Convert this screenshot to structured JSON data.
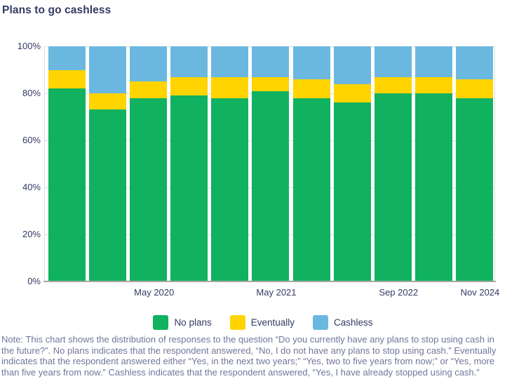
{
  "title": "Plans to go cashless",
  "colors": {
    "title_text": "#333A64",
    "axis_text": "#333A64",
    "note_text": "#70769A",
    "gridline": "#DDDDDD",
    "axis_line": "#A6A6A6",
    "background": "#FFFFFF",
    "no_plans": "#10B15F",
    "eventually": "#FFD400",
    "cashless": "#6AB8DF"
  },
  "chart_data": {
    "type": "bar",
    "stacked": true,
    "title": "Plans to go cashless",
    "xlabel": "",
    "ylabel": "",
    "ylim": [
      0,
      100
    ],
    "grid": "horizontal",
    "legend_position": "bottom",
    "yticks": [
      {
        "value": 0,
        "label": "0%"
      },
      {
        "value": 20,
        "label": "20%"
      },
      {
        "value": 40,
        "label": "40%"
      },
      {
        "value": 60,
        "label": "60%"
      },
      {
        "value": 80,
        "label": "80%"
      },
      {
        "value": 100,
        "label": "100%"
      }
    ],
    "categories": [
      "",
      "",
      "May 2020",
      "",
      "",
      "May 2021",
      "",
      "",
      "Sep 2022",
      "",
      "Nov 2024"
    ],
    "series": [
      {
        "name": "No plans",
        "color": "#10B15F",
        "values": [
          82,
          73,
          78,
          79,
          78,
          81,
          78,
          76,
          80,
          80,
          78
        ]
      },
      {
        "name": "Eventually",
        "color": "#FFD400",
        "values": [
          8,
          7,
          7,
          8,
          9,
          6,
          8,
          8,
          7,
          7,
          8
        ]
      },
      {
        "name": "Cashless",
        "color": "#6AB8DF",
        "values": [
          10,
          20,
          15,
          13,
          13,
          13,
          14,
          16,
          13,
          13,
          14
        ]
      }
    ]
  },
  "legend": {
    "items": [
      {
        "label": "No plans",
        "color": "#10B15F"
      },
      {
        "label": "Eventually",
        "color": "#FFD400"
      },
      {
        "label": "Cashless",
        "color": "#6AB8DF"
      }
    ]
  },
  "note": {
    "lines": [
      "Note: This chart shows the distribution of responses to the question “Do you currently have any plans to stop using cash in",
      "the future?”. No plans indicates that the respondent answered, “No, I do not have any plans to stop using cash.” Eventually",
      "indicates that the respondent answered either “Yes, in the next two years;” “Yes, two to five years from now;” or “Yes, more",
      "than five years from now.” Cashless indicates that the respondent answered, “Yes, I have already stopped using cash.”"
    ]
  }
}
